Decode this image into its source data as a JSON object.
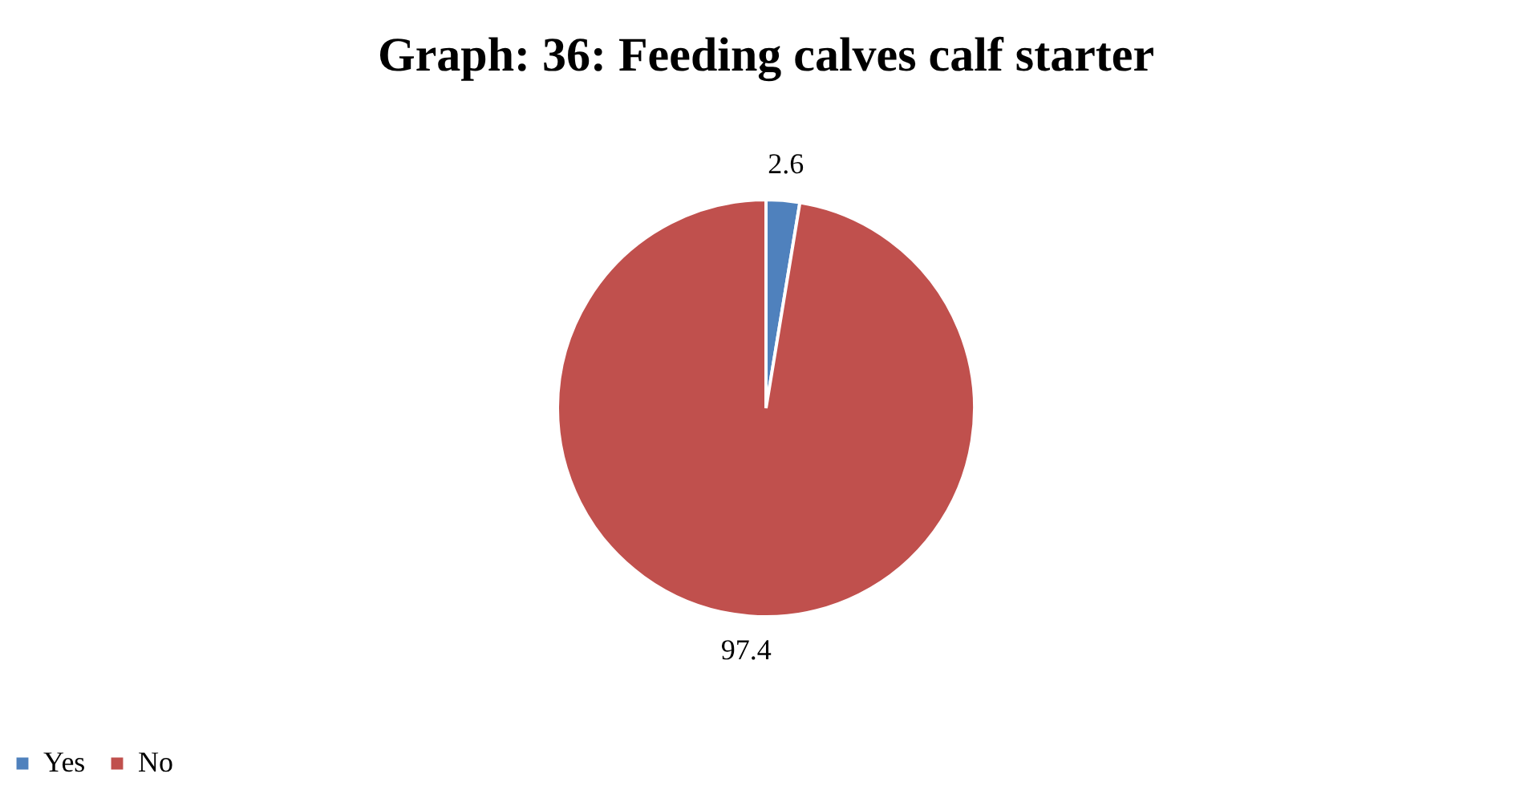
{
  "chart_data": {
    "type": "pie",
    "title": "Graph: 36: Feeding calves calf starter",
    "categories": [
      "Yes",
      "No"
    ],
    "values": [
      2.6,
      97.4
    ],
    "colors": [
      "#4f81bd",
      "#c0504d"
    ],
    "data_labels": true,
    "legend": "bottom"
  }
}
